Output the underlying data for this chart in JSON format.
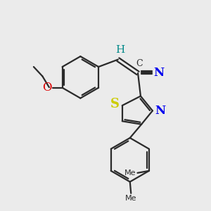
{
  "bg_color": "#ebebeb",
  "bond_color": "#2a2a2a",
  "bond_width": 1.6,
  "atom_colors": {
    "S": "#cccc00",
    "N": "#0000ee",
    "O": "#dd0000",
    "H": "#008888",
    "C": "#2a2a2a"
  },
  "fig_size": [
    3.0,
    3.0
  ],
  "dpi": 100,
  "xlim": [
    0,
    10
  ],
  "ylim": [
    0,
    10
  ],
  "font_size_heteroatom": 12,
  "font_size_H": 11
}
